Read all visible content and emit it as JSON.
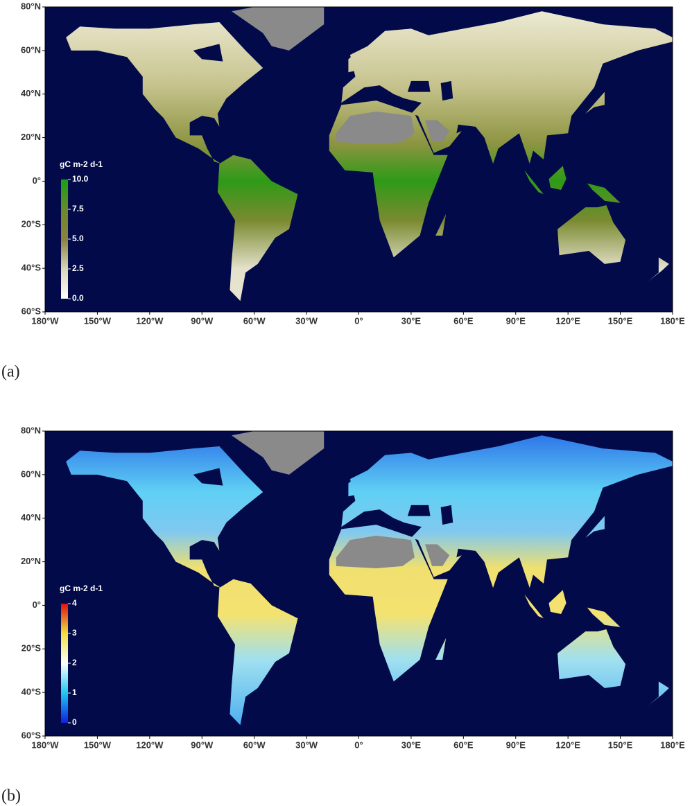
{
  "panels": [
    {
      "label": "(a)",
      "xlim": [
        -180,
        180
      ],
      "ylim": [
        -60,
        80
      ],
      "xticks": [
        {
          "value": -180,
          "label": "180°W"
        },
        {
          "value": -150,
          "label": "150°W"
        },
        {
          "value": -120,
          "label": "120°W"
        },
        {
          "value": -90,
          "label": "90°W"
        },
        {
          "value": -60,
          "label": "60°W"
        },
        {
          "value": -30,
          "label": "30°W"
        },
        {
          "value": 0,
          "label": "0°"
        },
        {
          "value": 30,
          "label": "30°E"
        },
        {
          "value": 60,
          "label": "60°E"
        },
        {
          "value": 90,
          "label": "90°E"
        },
        {
          "value": 120,
          "label": "120°E"
        },
        {
          "value": 150,
          "label": "150°E"
        },
        {
          "value": 180,
          "label": "180°E"
        }
      ],
      "yticks": [
        {
          "value": 80,
          "label": "80°N"
        },
        {
          "value": 60,
          "label": "60°N"
        },
        {
          "value": 40,
          "label": "40°N"
        },
        {
          "value": 20,
          "label": "20°N"
        },
        {
          "value": 0,
          "label": "0°"
        },
        {
          "value": -20,
          "label": "20°S"
        },
        {
          "value": -40,
          "label": "40°S"
        },
        {
          "value": -60,
          "label": "60°S"
        }
      ],
      "colorbar": {
        "title": "gC m-2 d-1",
        "range": [
          0,
          10
        ],
        "ticks": [
          {
            "value": 0,
            "label": "0.0"
          },
          {
            "value": 2.5,
            "label": "2.5"
          },
          {
            "value": 5,
            "label": "5.0"
          },
          {
            "value": 7.5,
            "label": "7.5"
          },
          {
            "value": 10,
            "label": "10.0"
          }
        ],
        "colors": [
          "#ffffff",
          "#d8d6b8",
          "#8c8040",
          "#6a8a2a",
          "#18a018"
        ]
      }
    },
    {
      "label": "(b)",
      "xlim": [
        -180,
        180
      ],
      "ylim": [
        -60,
        80
      ],
      "xticks": [
        {
          "value": -180,
          "label": "180°W"
        },
        {
          "value": -150,
          "label": "150°W"
        },
        {
          "value": -120,
          "label": "120°W"
        },
        {
          "value": -90,
          "label": "90°W"
        },
        {
          "value": -60,
          "label": "60°W"
        },
        {
          "value": -30,
          "label": "30°W"
        },
        {
          "value": 0,
          "label": "0°"
        },
        {
          "value": 30,
          "label": "30°E"
        },
        {
          "value": 60,
          "label": "60°E"
        },
        {
          "value": 90,
          "label": "90°E"
        },
        {
          "value": 120,
          "label": "120°E"
        },
        {
          "value": 150,
          "label": "150°E"
        },
        {
          "value": 180,
          "label": "180°E"
        }
      ],
      "yticks": [
        {
          "value": 80,
          "label": "80°N"
        },
        {
          "value": 60,
          "label": "60°N"
        },
        {
          "value": 40,
          "label": "40°N"
        },
        {
          "value": 20,
          "label": "20°N"
        },
        {
          "value": 0,
          "label": "0°"
        },
        {
          "value": -20,
          "label": "20°S"
        },
        {
          "value": -40,
          "label": "40°S"
        },
        {
          "value": -60,
          "label": "60°S"
        }
      ],
      "colorbar": {
        "title": "gC m-2 d-1",
        "range": [
          0,
          4
        ],
        "ticks": [
          0,
          1,
          2,
          3,
          4
        ],
        "colors": [
          "#1020e0",
          "#20c8f0",
          "#ffffff",
          "#f0e040",
          "#e01010"
        ]
      }
    }
  ]
}
